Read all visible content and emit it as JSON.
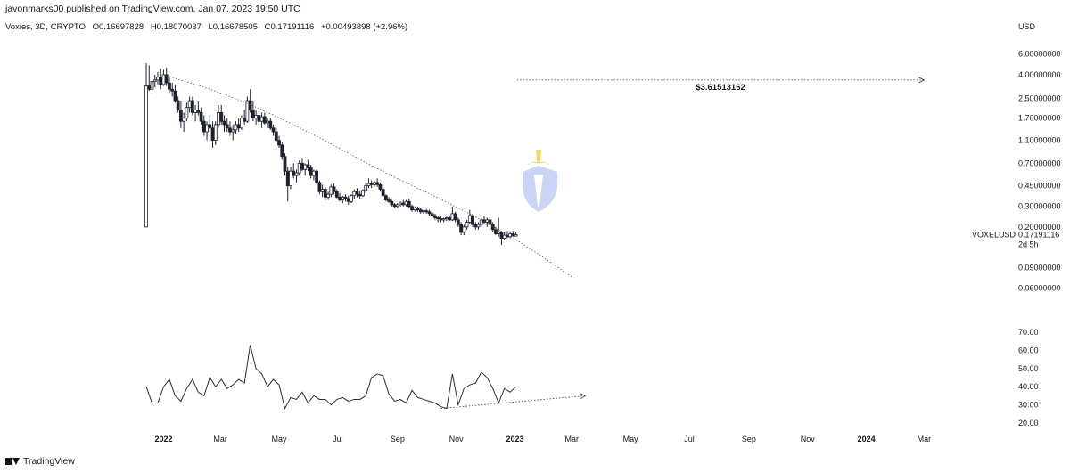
{
  "header": {
    "published": "javonmarks00 published on TradingView.com, Jan 07, 2023 19:50 UTC"
  },
  "legend": {
    "symbol": "Voxies, 3D, CRYPTO",
    "open": "O0.16697828",
    "high": "H0.18070037",
    "low": "L0.16678505",
    "close": "C0.17191116",
    "change": "+0.00493898 (+2.96%)"
  },
  "footer": {
    "brand": "TradingView"
  },
  "colors": {
    "candle": "#1e2230",
    "line": "#2a2e39",
    "grid_text": "#131722",
    "logo": "#c9d4f7",
    "logo_accent": "#f5d76e"
  },
  "chart_data": [
    {
      "type": "candlestick",
      "yscale": "log",
      "ylabel": "USD",
      "yticks": [
        6.0,
        4.0,
        2.5,
        1.7,
        1.1,
        0.7,
        0.45,
        0.3,
        0.2,
        0.09,
        0.06
      ],
      "ytick_labels": [
        "6.00000000",
        "4.00000000",
        "2.50000000",
        "1.70000000",
        "1.10000000",
        "0.70000000",
        "0.45000000",
        "0.30000000",
        "0.20000000",
        "0.09000000",
        "0.06000000"
      ],
      "ylim": [
        0.045,
        7.5
      ],
      "xticks": [
        "2022",
        "Mar",
        "May",
        "Jul",
        "Sep",
        "Nov",
        "2023",
        "Mar",
        "May",
        "Jul",
        "Sep",
        "Nov",
        "2024",
        "Mar"
      ],
      "xlim": [
        "2021-12-01",
        "2024-04-15"
      ],
      "symbol_label": "VOXELUSD",
      "last_price": "0.17191116",
      "countdown": "2d 5h",
      "candles": [
        [
          "2021-12-14",
          0.2,
          5.0,
          0.2,
          3.2
        ],
        [
          "2021-12-17",
          3.2,
          4.8,
          2.9,
          3.0
        ],
        [
          "2021-12-20",
          3.0,
          3.9,
          2.8,
          3.5
        ],
        [
          "2021-12-23",
          3.5,
          4.0,
          3.1,
          3.6
        ],
        [
          "2021-12-26",
          3.6,
          4.2,
          3.3,
          3.8
        ],
        [
          "2021-12-29",
          3.8,
          4.5,
          3.0,
          3.3
        ],
        [
          "2022-01-01",
          3.3,
          4.4,
          3.2,
          4.0
        ],
        [
          "2022-01-04",
          4.0,
          4.6,
          3.2,
          3.4
        ],
        [
          "2022-01-07",
          3.4,
          3.8,
          2.8,
          3.0
        ],
        [
          "2022-01-10",
          3.0,
          3.4,
          2.6,
          2.9
        ],
        [
          "2022-01-13",
          2.9,
          3.3,
          2.3,
          2.4
        ],
        [
          "2022-01-16",
          2.4,
          2.6,
          1.9,
          2.0
        ],
        [
          "2022-01-19",
          2.0,
          2.4,
          1.4,
          1.6
        ],
        [
          "2022-01-22",
          1.6,
          1.9,
          1.3,
          1.7
        ],
        [
          "2022-01-25",
          1.7,
          2.3,
          1.6,
          2.1
        ],
        [
          "2022-01-28",
          2.1,
          2.6,
          1.9,
          2.4
        ],
        [
          "2022-01-31",
          2.4,
          2.6,
          1.8,
          1.9
        ],
        [
          "2022-02-03",
          1.9,
          2.2,
          1.6,
          2.0
        ],
        [
          "2022-02-06",
          2.0,
          2.4,
          1.8,
          1.9
        ],
        [
          "2022-02-09",
          1.9,
          2.1,
          1.5,
          1.6
        ],
        [
          "2022-02-12",
          1.6,
          1.8,
          1.2,
          1.3
        ],
        [
          "2022-02-15",
          1.3,
          1.6,
          1.1,
          1.5
        ],
        [
          "2022-02-18",
          1.5,
          1.8,
          1.3,
          1.4
        ],
        [
          "2022-02-21",
          1.4,
          1.6,
          0.95,
          1.1
        ],
        [
          "2022-02-24",
          1.1,
          1.6,
          1.0,
          1.5
        ],
        [
          "2022-02-27",
          1.5,
          2.2,
          1.4,
          1.9
        ],
        [
          "2022-03-02",
          1.9,
          2.2,
          1.5,
          1.6
        ],
        [
          "2022-03-05",
          1.6,
          1.8,
          1.3,
          1.5
        ],
        [
          "2022-03-08",
          1.5,
          1.7,
          1.3,
          1.4
        ],
        [
          "2022-03-11",
          1.4,
          1.6,
          1.2,
          1.3
        ],
        [
          "2022-03-14",
          1.3,
          1.5,
          1.1,
          1.35
        ],
        [
          "2022-03-17",
          1.35,
          1.6,
          1.25,
          1.5
        ],
        [
          "2022-03-20",
          1.5,
          1.7,
          1.3,
          1.4
        ],
        [
          "2022-03-23",
          1.4,
          1.8,
          1.35,
          1.7
        ],
        [
          "2022-03-26",
          1.7,
          2.0,
          1.5,
          1.6
        ],
        [
          "2022-03-29",
          1.6,
          2.6,
          1.55,
          2.4
        ],
        [
          "2022-04-01",
          2.4,
          3.0,
          1.9,
          2.0
        ],
        [
          "2022-04-04",
          2.0,
          2.4,
          1.6,
          1.7
        ],
        [
          "2022-04-07",
          1.7,
          2.0,
          1.5,
          1.8
        ],
        [
          "2022-04-10",
          1.8,
          1.95,
          1.5,
          1.6
        ],
        [
          "2022-04-13",
          1.6,
          1.9,
          1.4,
          1.75
        ],
        [
          "2022-04-16",
          1.75,
          1.9,
          1.5,
          1.55
        ],
        [
          "2022-04-19",
          1.55,
          1.7,
          1.4,
          1.6
        ],
        [
          "2022-04-22",
          1.6,
          1.7,
          1.35,
          1.4
        ],
        [
          "2022-04-25",
          1.4,
          1.5,
          1.2,
          1.3
        ],
        [
          "2022-04-28",
          1.3,
          1.4,
          1.05,
          1.1
        ],
        [
          "2022-05-01",
          1.1,
          1.2,
          0.95,
          1.0
        ],
        [
          "2022-05-04",
          1.0,
          1.05,
          0.75,
          0.8
        ],
        [
          "2022-05-07",
          0.8,
          0.85,
          0.55,
          0.6
        ],
        [
          "2022-05-10",
          0.6,
          0.65,
          0.33,
          0.45
        ],
        [
          "2022-05-13",
          0.45,
          0.65,
          0.42,
          0.6
        ],
        [
          "2022-05-16",
          0.6,
          0.7,
          0.52,
          0.55
        ],
        [
          "2022-05-19",
          0.55,
          0.62,
          0.48,
          0.58
        ],
        [
          "2022-05-22",
          0.58,
          0.74,
          0.55,
          0.7
        ],
        [
          "2022-05-25",
          0.7,
          0.78,
          0.6,
          0.62
        ],
        [
          "2022-05-28",
          0.62,
          0.7,
          0.55,
          0.68
        ],
        [
          "2022-05-31",
          0.68,
          0.75,
          0.6,
          0.64
        ],
        [
          "2022-06-03",
          0.64,
          0.68,
          0.52,
          0.55
        ],
        [
          "2022-06-06",
          0.55,
          0.62,
          0.5,
          0.6
        ],
        [
          "2022-06-09",
          0.6,
          0.62,
          0.46,
          0.48
        ],
        [
          "2022-06-12",
          0.48,
          0.5,
          0.38,
          0.4
        ],
        [
          "2022-06-15",
          0.4,
          0.46,
          0.36,
          0.42
        ],
        [
          "2022-06-18",
          0.42,
          0.44,
          0.34,
          0.36
        ],
        [
          "2022-06-21",
          0.36,
          0.4,
          0.34,
          0.38
        ],
        [
          "2022-06-24",
          0.38,
          0.46,
          0.36,
          0.44
        ],
        [
          "2022-06-27",
          0.44,
          0.47,
          0.38,
          0.4
        ],
        [
          "2022-06-30",
          0.4,
          0.42,
          0.35,
          0.36
        ],
        [
          "2022-07-03",
          0.36,
          0.39,
          0.33,
          0.34
        ],
        [
          "2022-07-06",
          0.34,
          0.37,
          0.32,
          0.36
        ],
        [
          "2022-07-09",
          0.36,
          0.38,
          0.33,
          0.35
        ],
        [
          "2022-07-12",
          0.35,
          0.37,
          0.31,
          0.33
        ],
        [
          "2022-07-15",
          0.33,
          0.38,
          0.32,
          0.37
        ],
        [
          "2022-07-18",
          0.37,
          0.42,
          0.35,
          0.4
        ],
        [
          "2022-07-21",
          0.4,
          0.43,
          0.36,
          0.38
        ],
        [
          "2022-07-24",
          0.38,
          0.41,
          0.35,
          0.37
        ],
        [
          "2022-07-27",
          0.37,
          0.42,
          0.36,
          0.41
        ],
        [
          "2022-07-30",
          0.41,
          0.48,
          0.39,
          0.45
        ],
        [
          "2022-08-02",
          0.45,
          0.52,
          0.43,
          0.47
        ],
        [
          "2022-08-05",
          0.47,
          0.5,
          0.43,
          0.46
        ],
        [
          "2022-08-08",
          0.46,
          0.5,
          0.44,
          0.48
        ],
        [
          "2022-08-11",
          0.48,
          0.52,
          0.44,
          0.46
        ],
        [
          "2022-08-14",
          0.46,
          0.48,
          0.4,
          0.42
        ],
        [
          "2022-08-17",
          0.42,
          0.44,
          0.36,
          0.37
        ],
        [
          "2022-08-20",
          0.37,
          0.38,
          0.33,
          0.34
        ],
        [
          "2022-08-23",
          0.34,
          0.36,
          0.32,
          0.33
        ],
        [
          "2022-08-26",
          0.33,
          0.34,
          0.3,
          0.31
        ],
        [
          "2022-08-29",
          0.31,
          0.32,
          0.29,
          0.3
        ],
        [
          "2022-09-01",
          0.3,
          0.32,
          0.29,
          0.31
        ],
        [
          "2022-09-04",
          0.31,
          0.33,
          0.3,
          0.32
        ],
        [
          "2022-09-07",
          0.32,
          0.34,
          0.3,
          0.31
        ],
        [
          "2022-09-10",
          0.31,
          0.34,
          0.3,
          0.33
        ],
        [
          "2022-09-13",
          0.33,
          0.35,
          0.29,
          0.3
        ],
        [
          "2022-09-16",
          0.3,
          0.31,
          0.27,
          0.28
        ],
        [
          "2022-09-19",
          0.28,
          0.3,
          0.27,
          0.29
        ],
        [
          "2022-09-22",
          0.29,
          0.3,
          0.27,
          0.28
        ],
        [
          "2022-09-25",
          0.28,
          0.29,
          0.26,
          0.27
        ],
        [
          "2022-09-28",
          0.27,
          0.28,
          0.26,
          0.275
        ],
        [
          "2022-10-01",
          0.275,
          0.285,
          0.26,
          0.27
        ],
        [
          "2022-10-04",
          0.27,
          0.28,
          0.25,
          0.26
        ],
        [
          "2022-10-07",
          0.26,
          0.27,
          0.24,
          0.25
        ],
        [
          "2022-10-10",
          0.25,
          0.26,
          0.23,
          0.24
        ],
        [
          "2022-10-13",
          0.24,
          0.25,
          0.22,
          0.235
        ],
        [
          "2022-10-16",
          0.235,
          0.245,
          0.22,
          0.23
        ],
        [
          "2022-10-19",
          0.23,
          0.24,
          0.22,
          0.235
        ],
        [
          "2022-10-22",
          0.235,
          0.245,
          0.225,
          0.24
        ],
        [
          "2022-10-25",
          0.24,
          0.25,
          0.225,
          0.23
        ],
        [
          "2022-10-28",
          0.23,
          0.3,
          0.225,
          0.26
        ],
        [
          "2022-10-31",
          0.26,
          0.27,
          0.22,
          0.23
        ],
        [
          "2022-11-03",
          0.23,
          0.24,
          0.2,
          0.21
        ],
        [
          "2022-11-06",
          0.21,
          0.22,
          0.17,
          0.18
        ],
        [
          "2022-11-09",
          0.18,
          0.21,
          0.17,
          0.2
        ],
        [
          "2022-11-12",
          0.2,
          0.23,
          0.19,
          0.22
        ],
        [
          "2022-11-15",
          0.22,
          0.28,
          0.21,
          0.25
        ],
        [
          "2022-11-18",
          0.25,
          0.26,
          0.2,
          0.21
        ],
        [
          "2022-11-21",
          0.21,
          0.22,
          0.19,
          0.2
        ],
        [
          "2022-11-24",
          0.2,
          0.22,
          0.19,
          0.21
        ],
        [
          "2022-11-27",
          0.21,
          0.24,
          0.2,
          0.23
        ],
        [
          "2022-11-30",
          0.23,
          0.25,
          0.21,
          0.22
        ],
        [
          "2022-12-03",
          0.22,
          0.24,
          0.2,
          0.23
        ],
        [
          "2022-12-06",
          0.23,
          0.24,
          0.2,
          0.21
        ],
        [
          "2022-12-09",
          0.21,
          0.22,
          0.18,
          0.19
        ],
        [
          "2022-12-12",
          0.19,
          0.2,
          0.17,
          0.175
        ],
        [
          "2022-12-15",
          0.175,
          0.24,
          0.165,
          0.18
        ],
        [
          "2022-12-18",
          0.18,
          0.185,
          0.14,
          0.16
        ],
        [
          "2022-12-21",
          0.16,
          0.18,
          0.155,
          0.17
        ],
        [
          "2022-12-24",
          0.17,
          0.185,
          0.16,
          0.165
        ],
        [
          "2022-12-27",
          0.165,
          0.18,
          0.16,
          0.175
        ],
        [
          "2022-12-30",
          0.175,
          0.185,
          0.165,
          0.168
        ],
        [
          "2023-01-02",
          0.167,
          0.181,
          0.1668,
          0.1719
        ]
      ],
      "annotations": [
        {
          "type": "curve",
          "points": [
            [
              "2022-01-01",
              4.0
            ],
            [
              "2022-03-15",
              2.6
            ],
            [
              "2022-06-01",
              1.3
            ],
            [
              "2022-08-15",
              0.6
            ],
            [
              "2022-11-01",
              0.3
            ],
            [
              "2023-01-01",
              0.16
            ],
            [
              "2023-03-01",
              0.075
            ]
          ]
        },
        {
          "type": "arrow",
          "from": [
            "2023-01-03",
            3.6
          ],
          "to": [
            "2024-03-01",
            3.6
          ],
          "label": "$3.61513162"
        }
      ]
    },
    {
      "type": "line",
      "yticks": [
        70,
        60,
        50,
        40,
        30,
        20
      ],
      "ytick_labels": [
        "70.00",
        "60.00",
        "50.00",
        "40.00",
        "30.00",
        "20.00"
      ],
      "ylim": [
        18,
        72
      ],
      "x": [
        "2021-12-14",
        "2021-12-20",
        "2021-12-26",
        "2022-01-01",
        "2022-01-07",
        "2022-01-13",
        "2022-01-19",
        "2022-01-25",
        "2022-01-31",
        "2022-02-06",
        "2022-02-12",
        "2022-02-18",
        "2022-02-24",
        "2022-03-02",
        "2022-03-08",
        "2022-03-14",
        "2022-03-20",
        "2022-03-26",
        "2022-04-01",
        "2022-04-07",
        "2022-04-13",
        "2022-04-19",
        "2022-04-25",
        "2022-05-01",
        "2022-05-07",
        "2022-05-13",
        "2022-05-19",
        "2022-05-25",
        "2022-05-31",
        "2022-06-06",
        "2022-06-12",
        "2022-06-18",
        "2022-06-24",
        "2022-06-30",
        "2022-07-06",
        "2022-07-12",
        "2022-07-18",
        "2022-07-24",
        "2022-07-30",
        "2022-08-05",
        "2022-08-11",
        "2022-08-17",
        "2022-08-23",
        "2022-08-29",
        "2022-09-04",
        "2022-09-10",
        "2022-09-16",
        "2022-09-22",
        "2022-09-28",
        "2022-10-04",
        "2022-10-10",
        "2022-10-16",
        "2022-10-22",
        "2022-10-28",
        "2022-11-03",
        "2022-11-09",
        "2022-11-15",
        "2022-11-21",
        "2022-11-27",
        "2022-12-03",
        "2022-12-09",
        "2022-12-15",
        "2022-12-21",
        "2022-12-27",
        "2023-01-02"
      ],
      "values": [
        40,
        31,
        31,
        40,
        44,
        35,
        32,
        39,
        44,
        37,
        35,
        45,
        40,
        44,
        39,
        41,
        44,
        42,
        63,
        50,
        47,
        40,
        44,
        41,
        28,
        34,
        33,
        37,
        31,
        35,
        33,
        33,
        30,
        33,
        34,
        32,
        33,
        33,
        35,
        45,
        47,
        46,
        36,
        32,
        33,
        31,
        38,
        34,
        33,
        32,
        31,
        29,
        28,
        47,
        30,
        39,
        41,
        42,
        48,
        45,
        39,
        31,
        39,
        37,
        40
      ],
      "annotations": [
        {
          "type": "arrow",
          "from": [
            "2022-10-16",
            28
          ],
          "to": [
            "2023-03-15",
            35
          ]
        }
      ]
    }
  ]
}
